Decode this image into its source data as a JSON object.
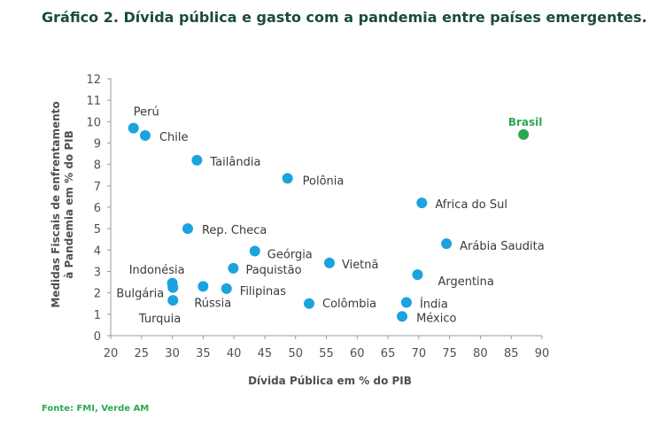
{
  "header": {
    "title": "Gráfico 2. Dívida pública e gasto com a pandemia entre países emergentes."
  },
  "footer": {
    "source": "Fonte: FMI, Verde AM"
  },
  "colors": {
    "point": "#1aa3de",
    "highlight": "#2aa850",
    "title": "#1b4a3e",
    "axis": "#505050"
  },
  "chart_data": {
    "type": "scatter",
    "xlabel": "Dívida Pública em % do PIB",
    "ylabel": "Medidas Fiscais de enfrentamento à Pandemia em % do PIB",
    "ylabel_lines": [
      "Medidas Fiscais de enfrentamento",
      "à Pandemia em % do PIB"
    ],
    "xlim": [
      20,
      90
    ],
    "ylim": [
      0,
      12
    ],
    "xticks": [
      20,
      25,
      30,
      35,
      40,
      45,
      50,
      55,
      60,
      65,
      70,
      75,
      80,
      85,
      90
    ],
    "yticks": [
      0,
      1,
      2,
      3,
      4,
      5,
      6,
      7,
      8,
      9,
      10,
      11,
      12
    ],
    "grid": false,
    "points": [
      {
        "label": "Perú",
        "x": 23.7,
        "y": 9.7
      },
      {
        "label": "Chile",
        "x": 25.6,
        "y": 9.35
      },
      {
        "label": "Tailândia",
        "x": 34.0,
        "y": 8.2
      },
      {
        "label": "Polônia",
        "x": 48.7,
        "y": 7.35
      },
      {
        "label": "Africa do Sul",
        "x": 70.5,
        "y": 6.2
      },
      {
        "label": "Rep. Checa",
        "x": 32.5,
        "y": 5.0
      },
      {
        "label": "Geórgia",
        "x": 43.4,
        "y": 3.95
      },
      {
        "label": "Arábia Saudita",
        "x": 74.5,
        "y": 4.3
      },
      {
        "label": "Paquistão",
        "x": 39.9,
        "y": 3.15
      },
      {
        "label": "Vietnã",
        "x": 55.5,
        "y": 3.4
      },
      {
        "label": "Indonésia",
        "x": 30.0,
        "y": 2.45
      },
      {
        "label": "Bulgária",
        "x": 30.1,
        "y": 2.25
      },
      {
        "label": "Argentina",
        "x": 69.8,
        "y": 2.85
      },
      {
        "label": "Rússia",
        "x": 35.0,
        "y": 2.3
      },
      {
        "label": "Filipinas",
        "x": 38.8,
        "y": 2.2
      },
      {
        "label": "Turquia",
        "x": 30.1,
        "y": 1.65
      },
      {
        "label": "Colômbia",
        "x": 52.2,
        "y": 1.5
      },
      {
        "label": "Índia",
        "x": 68.0,
        "y": 1.55
      },
      {
        "label": "México",
        "x": 67.3,
        "y": 0.9
      },
      {
        "label": "Brasil",
        "x": 87.0,
        "y": 9.4,
        "highlight": true
      }
    ]
  }
}
